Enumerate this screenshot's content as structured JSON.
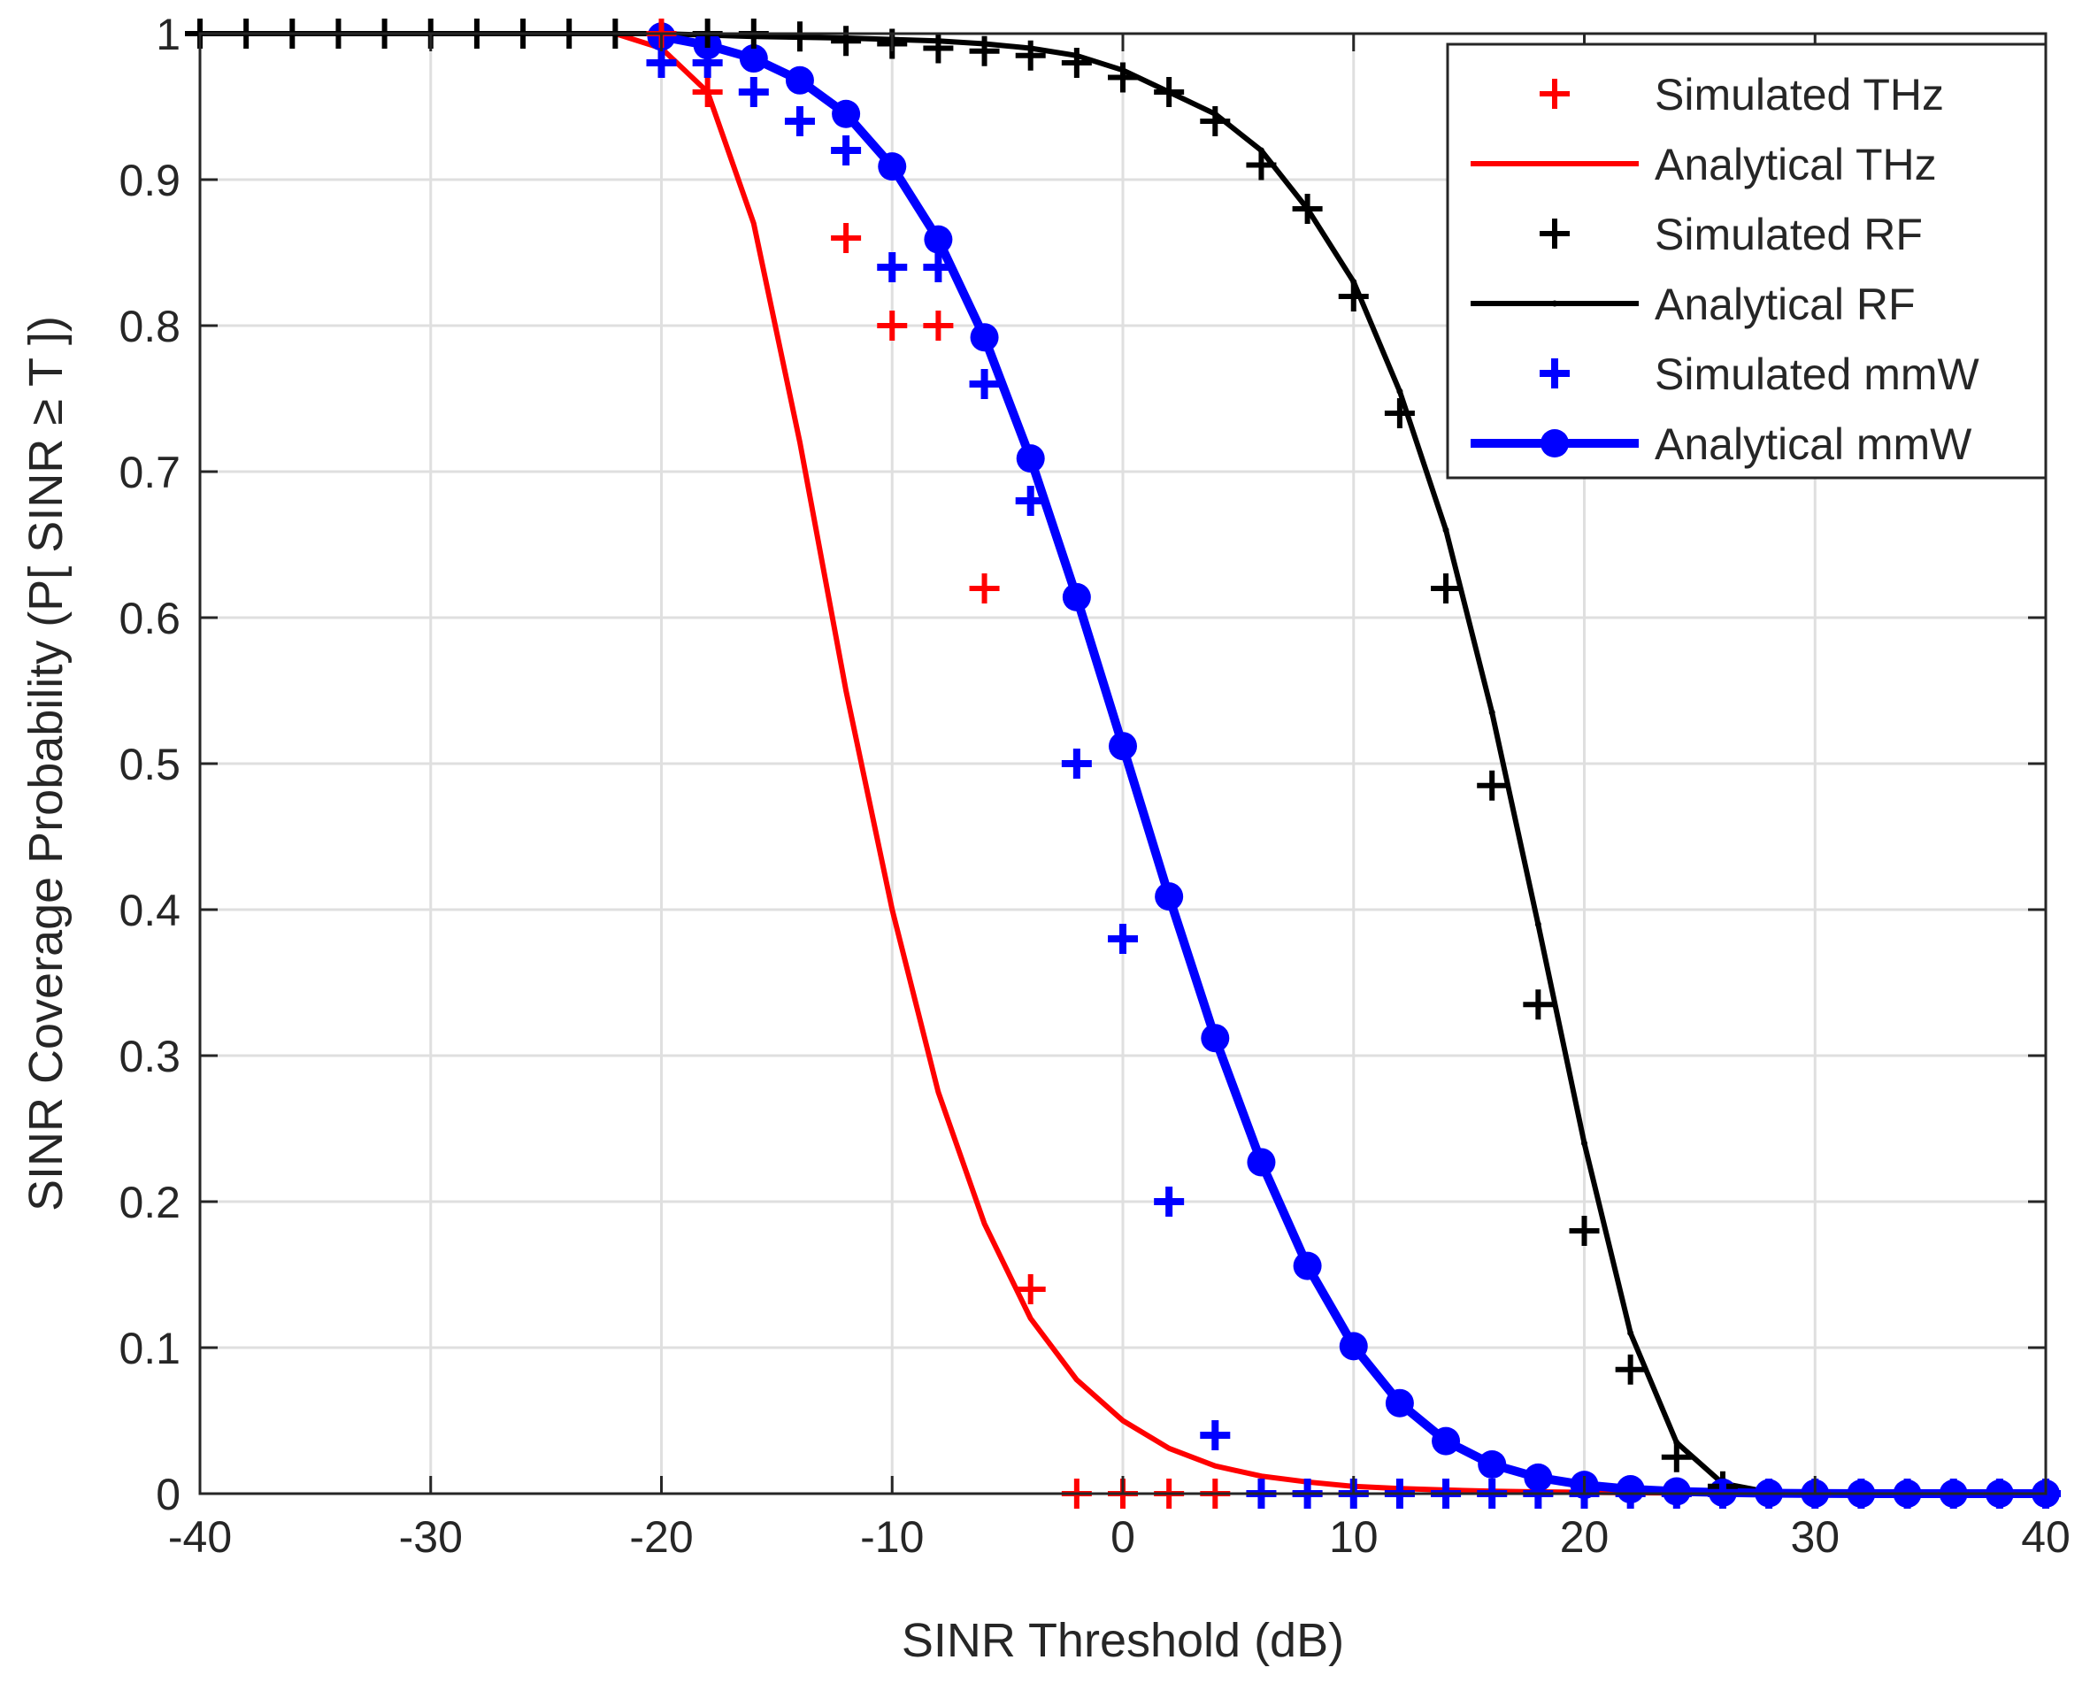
{
  "chart_data": {
    "type": "line",
    "title": "",
    "xlabel": "SINR Threshold (dB)",
    "ylabel": "SINR Coverage Probability (P[ SINR ≥ T ])",
    "xlim": [
      -40,
      40
    ],
    "ylim": [
      0,
      1
    ],
    "xticks": [
      -40,
      -30,
      -20,
      -10,
      0,
      10,
      20,
      30,
      40
    ],
    "yticks": [
      0,
      0.1,
      0.2,
      0.3,
      0.4,
      0.5,
      0.6,
      0.7,
      0.8,
      0.9,
      1
    ],
    "xtick_labels": [
      "-40",
      "-30",
      "-20",
      "-10",
      "0",
      "10",
      "20",
      "30",
      "40"
    ],
    "ytick_labels": [
      "0",
      "0.1",
      "0.2",
      "0.3",
      "0.4",
      "0.5",
      "0.6",
      "0.7",
      "0.8",
      "0.9",
      "1"
    ],
    "grid": true,
    "legend_position": "top-right",
    "series": [
      {
        "name": "Simulated THz",
        "kind": "markers",
        "marker": "plus",
        "color": "#ff0000",
        "x": [
          -20,
          -18,
          -12,
          -10,
          -8,
          -6,
          -4,
          -2,
          0,
          2,
          4,
          6,
          8,
          10,
          12,
          14,
          16,
          18,
          20,
          22,
          24,
          26,
          28,
          30,
          32,
          34,
          36,
          38,
          40
        ],
        "y": [
          1.0,
          0.96,
          0.86,
          0.8,
          0.8,
          0.62,
          0.14,
          0,
          0,
          0,
          0,
          0,
          0,
          0,
          0,
          0,
          0,
          0,
          0,
          0,
          0,
          0,
          0,
          0,
          0,
          0,
          0,
          0,
          0
        ]
      },
      {
        "name": "Analytical THz",
        "kind": "line",
        "color": "#ff0000",
        "x": [
          -40,
          -30,
          -22,
          -20,
          -18,
          -16,
          -14,
          -12,
          -10,
          -8,
          -6,
          -4,
          -2,
          0,
          2,
          4,
          6,
          8,
          10,
          12,
          14,
          16,
          18,
          20,
          22,
          24,
          26,
          28,
          30,
          32,
          34,
          36,
          38,
          40
        ],
        "y": [
          1.0,
          1.0,
          1.0,
          0.99,
          0.96,
          0.87,
          0.72,
          0.55,
          0.4,
          0.275,
          0.185,
          0.12,
          0.078,
          0.05,
          0.031,
          0.019,
          0.012,
          0.008,
          0.005,
          0.0035,
          0.0025,
          0.0017,
          0.0012,
          0.0009,
          0.0006,
          0.0004,
          0.0003,
          0.0002,
          0.0001,
          0.0001,
          0,
          0,
          0,
          0
        ]
      },
      {
        "name": "Simulated RF",
        "kind": "markers",
        "marker": "plus",
        "color": "#000000",
        "x": [
          -40,
          -38,
          -36,
          -34,
          -32,
          -30,
          -28,
          -26,
          -24,
          -22,
          -20,
          -18,
          -16,
          -14,
          -12,
          -10,
          -8,
          -6,
          -4,
          -2,
          0,
          2,
          4,
          6,
          8,
          10,
          12,
          14,
          16,
          18,
          20,
          22,
          24,
          26,
          28,
          30,
          32,
          34,
          36,
          38,
          40
        ],
        "y": [
          1.0,
          1.0,
          1.0,
          1.0,
          1.0,
          1.0,
          1.0,
          1.0,
          1.0,
          1.0,
          1.0,
          1.0,
          1.0,
          0.998,
          0.995,
          0.993,
          0.99,
          0.988,
          0.985,
          0.98,
          0.97,
          0.96,
          0.94,
          0.91,
          0.88,
          0.82,
          0.74,
          0.62,
          0.485,
          0.335,
          0.18,
          0.085,
          0.025,
          0.005,
          0,
          0,
          0,
          0,
          0,
          0,
          0
        ]
      },
      {
        "name": "Analytical RF",
        "kind": "line",
        "color": "#000000",
        "x": [
          -40,
          -30,
          -20,
          -16,
          -12,
          -8,
          -6,
          -4,
          -2,
          0,
          2,
          4,
          6,
          8,
          10,
          12,
          14,
          16,
          18,
          20,
          22,
          24,
          26,
          28,
          30,
          32,
          34,
          36,
          38,
          40
        ],
        "y": [
          1.0,
          1.0,
          1.0,
          0.998,
          0.997,
          0.995,
          0.993,
          0.99,
          0.985,
          0.975,
          0.96,
          0.945,
          0.92,
          0.88,
          0.83,
          0.755,
          0.66,
          0.535,
          0.39,
          0.24,
          0.11,
          0.035,
          0.007,
          0.001,
          0,
          0,
          0,
          0,
          0,
          0
        ]
      },
      {
        "name": "Simulated mmW",
        "kind": "markers",
        "marker": "plus-bold",
        "color": "#0000ff",
        "x": [
          -20,
          -18,
          -16,
          -14,
          -12,
          -10,
          -8,
          -6,
          -4,
          -2,
          0,
          2,
          4,
          6,
          8,
          10,
          12,
          14,
          16,
          18,
          20,
          22,
          24,
          26,
          28,
          30,
          32,
          34,
          36,
          38,
          40
        ],
        "y": [
          0.98,
          0.98,
          0.96,
          0.94,
          0.92,
          0.84,
          0.84,
          0.76,
          0.68,
          0.5,
          0.38,
          0.2,
          0.04,
          0,
          0,
          0,
          0,
          0,
          0,
          0,
          0,
          0,
          0,
          0,
          0,
          0,
          0,
          0,
          0,
          0,
          0
        ]
      },
      {
        "name": "Analytical mmW",
        "kind": "line-markers",
        "marker": "circle",
        "color": "#0000ff",
        "x": [
          -20,
          -18,
          -16,
          -14,
          -12,
          -10,
          -8,
          -6,
          -4,
          -2,
          0,
          2,
          4,
          6,
          8,
          10,
          12,
          14,
          16,
          18,
          20,
          22,
          24,
          26,
          28,
          30,
          32,
          34,
          36,
          38,
          40
        ],
        "y": [
          0.998,
          0.992,
          0.983,
          0.968,
          0.945,
          0.909,
          0.859,
          0.792,
          0.709,
          0.614,
          0.512,
          0.409,
          0.312,
          0.227,
          0.156,
          0.101,
          0.062,
          0.036,
          0.02,
          0.011,
          0.006,
          0.003,
          0.0015,
          0.0007,
          0.0003,
          0.0001,
          0,
          0,
          0,
          0,
          0
        ]
      }
    ]
  }
}
